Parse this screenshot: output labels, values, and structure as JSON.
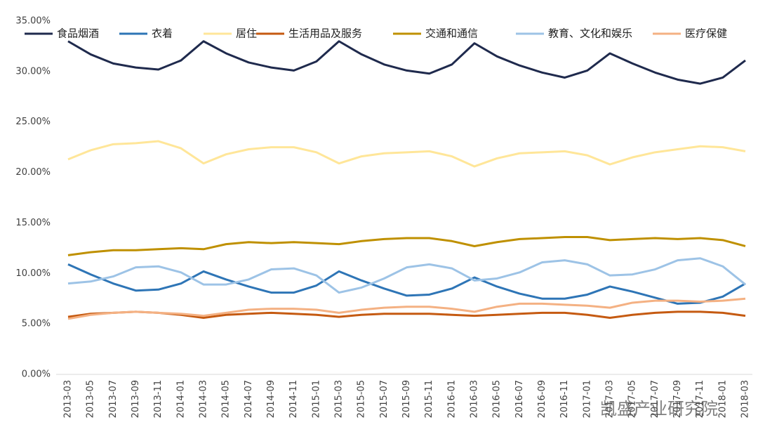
{
  "chart_data": {
    "type": "line",
    "categories": [
      "2013-03",
      "2013-05",
      "2013-07",
      "2013-09",
      "2013-11",
      "2014-01",
      "2014-03",
      "2014-05",
      "2014-07",
      "2014-09",
      "2014-11",
      "2015-01",
      "2015-03",
      "2015-05",
      "2015-07",
      "2015-09",
      "2015-11",
      "2016-01",
      "2016-03",
      "2016-05",
      "2016-07",
      "2016-09",
      "2016-11",
      "2017-01",
      "2017-03",
      "2017-05",
      "2017-07",
      "2017-09",
      "2017-11",
      "2018-01",
      "2018-03"
    ],
    "ylim": [
      0,
      35
    ],
    "yticks": [
      {
        "value": 0,
        "label": "0.00%"
      },
      {
        "value": 5,
        "label": "5.00%"
      },
      {
        "value": 10,
        "label": "10.00%"
      },
      {
        "value": 15,
        "label": "15.00%"
      },
      {
        "value": 20,
        "label": "20.00%"
      },
      {
        "value": 25,
        "label": "25.00%"
      },
      {
        "value": 30,
        "label": "30.00%"
      },
      {
        "value": 35,
        "label": "35.00%"
      }
    ],
    "legend": "top",
    "watermark": "凯盛产业研究院",
    "series": [
      {
        "name": "食品烟酒",
        "color": "#1f2a4d",
        "values": [
          33,
          31.7,
          30.8,
          30.4,
          30.2,
          31.1,
          33,
          31.8,
          30.9,
          30.4,
          30.1,
          31.0,
          33,
          31.7,
          30.7,
          30.1,
          29.8,
          30.7,
          32.8,
          31.5,
          30.6,
          29.9,
          29.4,
          30.1,
          31.8,
          30.8,
          29.9,
          29.2,
          28.8,
          29.4,
          31.1
        ]
      },
      {
        "name": "衣着",
        "color": "#2e75b6",
        "values": [
          10.9,
          9.9,
          9.0,
          8.3,
          8.4,
          9.0,
          10.2,
          9.4,
          8.7,
          8.1,
          8.1,
          8.8,
          10.2,
          9.3,
          8.5,
          7.8,
          7.9,
          8.5,
          9.6,
          8.7,
          8.0,
          7.5,
          7.5,
          7.9,
          8.7,
          8.2,
          7.6,
          7.0,
          7.1,
          7.7,
          9.0
        ]
      },
      {
        "name": "居住",
        "color": "#ffe699",
        "values": [
          21.3,
          22.2,
          22.8,
          22.9,
          23.1,
          22.4,
          20.9,
          21.8,
          22.3,
          22.5,
          22.5,
          22.0,
          20.9,
          21.6,
          21.9,
          22.0,
          22.1,
          21.6,
          20.6,
          21.4,
          21.9,
          22.0,
          22.1,
          21.7,
          20.8,
          21.5,
          22.0,
          22.3,
          22.6,
          22.5,
          22.1
        ]
      },
      {
        "name": "生活用品及服务",
        "color": "#c55a11",
        "values": [
          5.7,
          6.0,
          6.1,
          6.2,
          6.1,
          5.9,
          5.6,
          5.9,
          6.0,
          6.1,
          6.0,
          5.9,
          5.7,
          5.9,
          6.0,
          6.0,
          6.0,
          5.9,
          5.8,
          5.9,
          6.0,
          6.1,
          6.1,
          5.9,
          5.6,
          5.9,
          6.1,
          6.2,
          6.2,
          6.1,
          5.8
        ]
      },
      {
        "name": "交通和通信",
        "color": "#bf9000",
        "values": [
          11.8,
          12.1,
          12.3,
          12.3,
          12.4,
          12.5,
          12.4,
          12.9,
          13.1,
          13.0,
          13.1,
          13.0,
          12.9,
          13.2,
          13.4,
          13.5,
          13.5,
          13.2,
          12.7,
          13.1,
          13.4,
          13.5,
          13.6,
          13.6,
          13.3,
          13.4,
          13.5,
          13.4,
          13.5,
          13.3,
          12.7
        ]
      },
      {
        "name": "教育、文化和娱乐",
        "color": "#9dc3e6",
        "values": [
          9.0,
          9.2,
          9.7,
          10.6,
          10.7,
          10.1,
          8.9,
          8.9,
          9.4,
          10.4,
          10.5,
          9.8,
          8.1,
          8.6,
          9.5,
          10.6,
          10.9,
          10.5,
          9.3,
          9.5,
          10.1,
          11.1,
          11.3,
          10.9,
          9.8,
          9.9,
          10.4,
          11.3,
          11.5,
          10.7,
          8.9
        ]
      },
      {
        "name": "医疗保健",
        "color": "#f4b183",
        "values": [
          5.5,
          5.9,
          6.1,
          6.2,
          6.1,
          6.0,
          5.8,
          6.1,
          6.4,
          6.5,
          6.5,
          6.4,
          6.1,
          6.4,
          6.6,
          6.7,
          6.7,
          6.5,
          6.2,
          6.7,
          7.0,
          7.0,
          6.9,
          6.8,
          6.6,
          7.1,
          7.3,
          7.3,
          7.2,
          7.3,
          7.5
        ]
      }
    ]
  }
}
